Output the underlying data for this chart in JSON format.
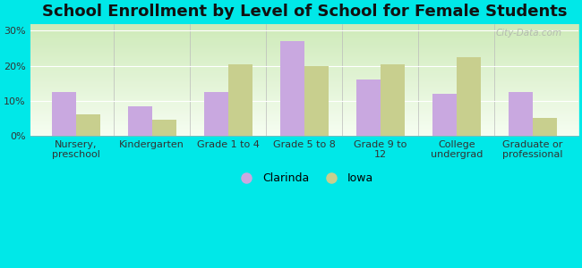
{
  "title": "School Enrollment by Level of School for Female Students",
  "categories": [
    "Nursery,\npreschool",
    "Kindergarten",
    "Grade 1 to 4",
    "Grade 5 to 8",
    "Grade 9 to\n12",
    "College\nundergrad",
    "Graduate or\nprofessional"
  ],
  "clarinda_values": [
    12.5,
    8.5,
    12.5,
    27.0,
    16.0,
    12.0,
    12.5
  ],
  "iowa_values": [
    6.0,
    4.5,
    20.5,
    20.0,
    20.5,
    22.5,
    5.0
  ],
  "clarinda_color": "#c9a8e0",
  "iowa_color": "#c8cf8e",
  "background_outer": "#00e8e8",
  "yticks": [
    0,
    10,
    20,
    30
  ],
  "ylim": [
    0,
    32
  ],
  "bar_width": 0.32,
  "legend_labels": [
    "Clarinda",
    "Iowa"
  ],
  "watermark": "City-Data.com",
  "title_fontsize": 13,
  "tick_fontsize": 8
}
